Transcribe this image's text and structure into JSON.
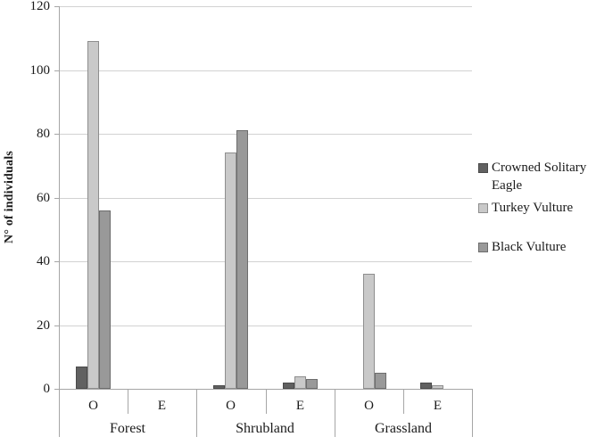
{
  "chart_data": {
    "type": "bar",
    "title": "",
    "ylabel": "N° of individuals",
    "xlabel": "",
    "ylim": [
      0,
      120
    ],
    "yticks": [
      0,
      20,
      40,
      60,
      80,
      100,
      120
    ],
    "grid": true,
    "legend_position": "right",
    "groups": [
      "Forest",
      "Shrubland",
      "Grassland"
    ],
    "subcategories": [
      "O",
      "E"
    ],
    "categories": [
      "Forest O",
      "Forest E",
      "Shrubland O",
      "Shrubland E",
      "Grassland O",
      "Grassland E"
    ],
    "series": [
      {
        "name": "Crowned Solitary Eagle",
        "color": "#616161",
        "border_color": "#4a4a4a",
        "values": [
          7,
          0,
          1,
          2,
          0,
          2
        ]
      },
      {
        "name": "Turkey Vulture",
        "color": "#c9c9c9",
        "border_color": "#8e8e8e",
        "values": [
          109,
          0,
          74,
          4,
          36,
          1
        ]
      },
      {
        "name": "Black Vulture",
        "color": "#999999",
        "border_color": "#6d6d6d",
        "values": [
          56,
          0,
          81,
          3,
          5,
          0
        ]
      }
    ],
    "axis_colors": {
      "gridline": "#d2d2d2",
      "axis_line": "#a6a6a6",
      "text": "#1a1a1a"
    }
  }
}
